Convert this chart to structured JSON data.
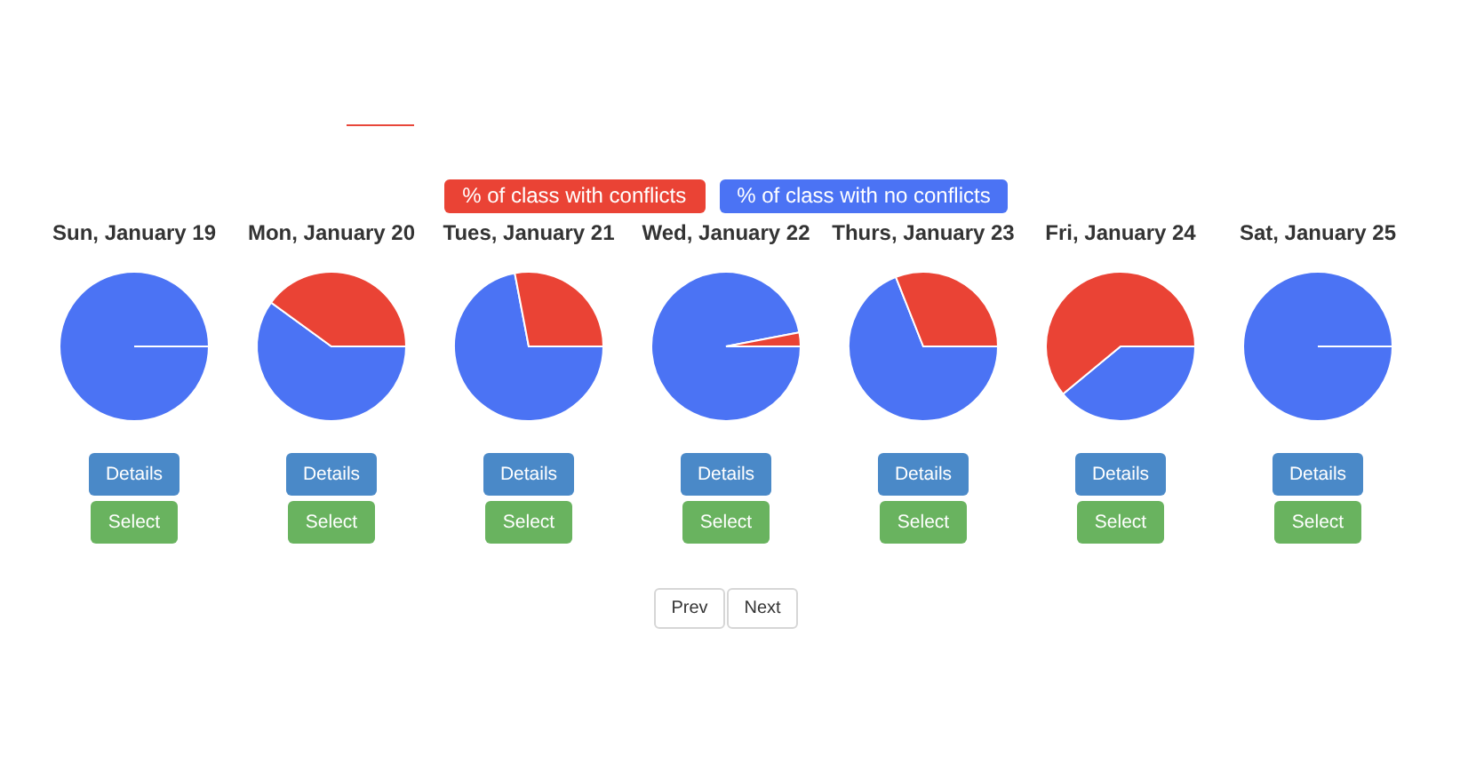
{
  "chart_data": [
    {
      "type": "pie",
      "title": "Sun, January 19",
      "categories": [
        "% of class with conflicts",
        "% of class with no conflicts"
      ],
      "values": [
        0,
        100
      ],
      "colors": [
        "#ea4335",
        "#4b73f4"
      ],
      "legend": "top",
      "annotations": [
        "Details",
        "Select"
      ]
    },
    {
      "type": "pie",
      "title": "Mon, January 20",
      "categories": [
        null,
        null
      ],
      "values": [
        40,
        60
      ],
      "colors": [
        "#ea4335",
        "#4b73f4"
      ],
      "annotations": [
        "Details",
        "Select"
      ]
    },
    {
      "type": "pie",
      "title": "Tues, January 21",
      "categories": [
        null,
        null
      ],
      "values": [
        28,
        72
      ],
      "colors": [
        "#ea4335",
        "#4b73f4"
      ],
      "annotations": [
        "Details",
        "Select"
      ]
    },
    {
      "type": "pie",
      "title": "Wed, January 22",
      "categories": [
        null,
        null
      ],
      "values": [
        3,
        97
      ],
      "colors": [
        "#ea4335",
        "#4b73f4"
      ],
      "annotations": [
        "Details",
        "Select"
      ]
    },
    {
      "type": "pie",
      "title": "Thurs, January 23",
      "categories": [
        null,
        null
      ],
      "values": [
        31,
        69
      ],
      "colors": [
        "#ea4335",
        "#4b73f4"
      ],
      "annotations": [
        "Details",
        "Select"
      ]
    },
    {
      "type": "pie",
      "title": "Fri, January 24",
      "categories": [
        null,
        null
      ],
      "values": [
        61,
        39
      ],
      "colors": [
        "#ea4335",
        "#4b73f4"
      ],
      "annotations": [
        "Details",
        "Select"
      ]
    },
    {
      "type": "pie",
      "title": "Sat, January 25",
      "categories": [
        null,
        null
      ],
      "values": [
        0,
        100
      ],
      "colors": [
        "#ea4335",
        "#4b73f4"
      ],
      "annotations": [
        "Details",
        "Select"
      ]
    },
    {
      "type": "other",
      "annotations": [
        "Prev",
        "Next"
      ]
    }
  ]
}
